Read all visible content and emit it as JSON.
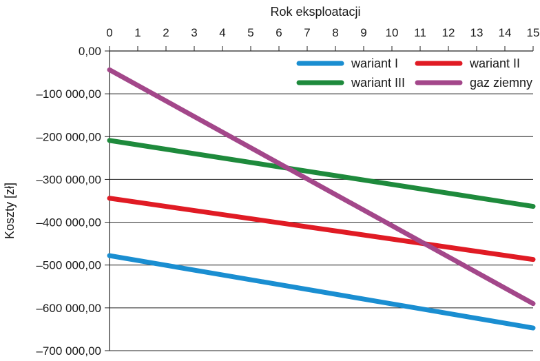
{
  "chart_data": {
    "type": "line",
    "xlabel": "Rok eksploatacji",
    "ylabel": "Koszty [zł]",
    "x": [
      0,
      15
    ],
    "xlim": [
      0,
      15
    ],
    "ylim": [
      -700000,
      0
    ],
    "x_ticks": [
      "0",
      "1",
      "2",
      "3",
      "4",
      "5",
      "6",
      "7",
      "8",
      "9",
      "10",
      "11",
      "12",
      "13",
      "14",
      "15"
    ],
    "y_ticks": [
      0,
      -100000,
      -200000,
      -300000,
      -400000,
      -500000,
      -600000,
      -700000
    ],
    "y_tick_labels": [
      "0,00",
      "–100 000,00",
      "–200 000,00",
      "–300 000,00",
      "–400 000,00",
      "–500 000,00",
      "–600 000,00",
      "–700 000,00"
    ],
    "grid": "horizontal",
    "legend_position": "top-right",
    "series": [
      {
        "name": "wariant I",
        "values": [
          -478000,
          -647000
        ],
        "color": "#1a8ed1"
      },
      {
        "name": "wariant II",
        "values": [
          -344000,
          -487000
        ],
        "color": "#e01b24"
      },
      {
        "name": "wariant III",
        "values": [
          -209000,
          -363000
        ],
        "color": "#1e8a3c"
      },
      {
        "name": "gaz ziemny",
        "values": [
          -44000,
          -590000
        ],
        "color": "#a3478a"
      }
    ],
    "legend_order": [
      0,
      1,
      2,
      3
    ]
  }
}
